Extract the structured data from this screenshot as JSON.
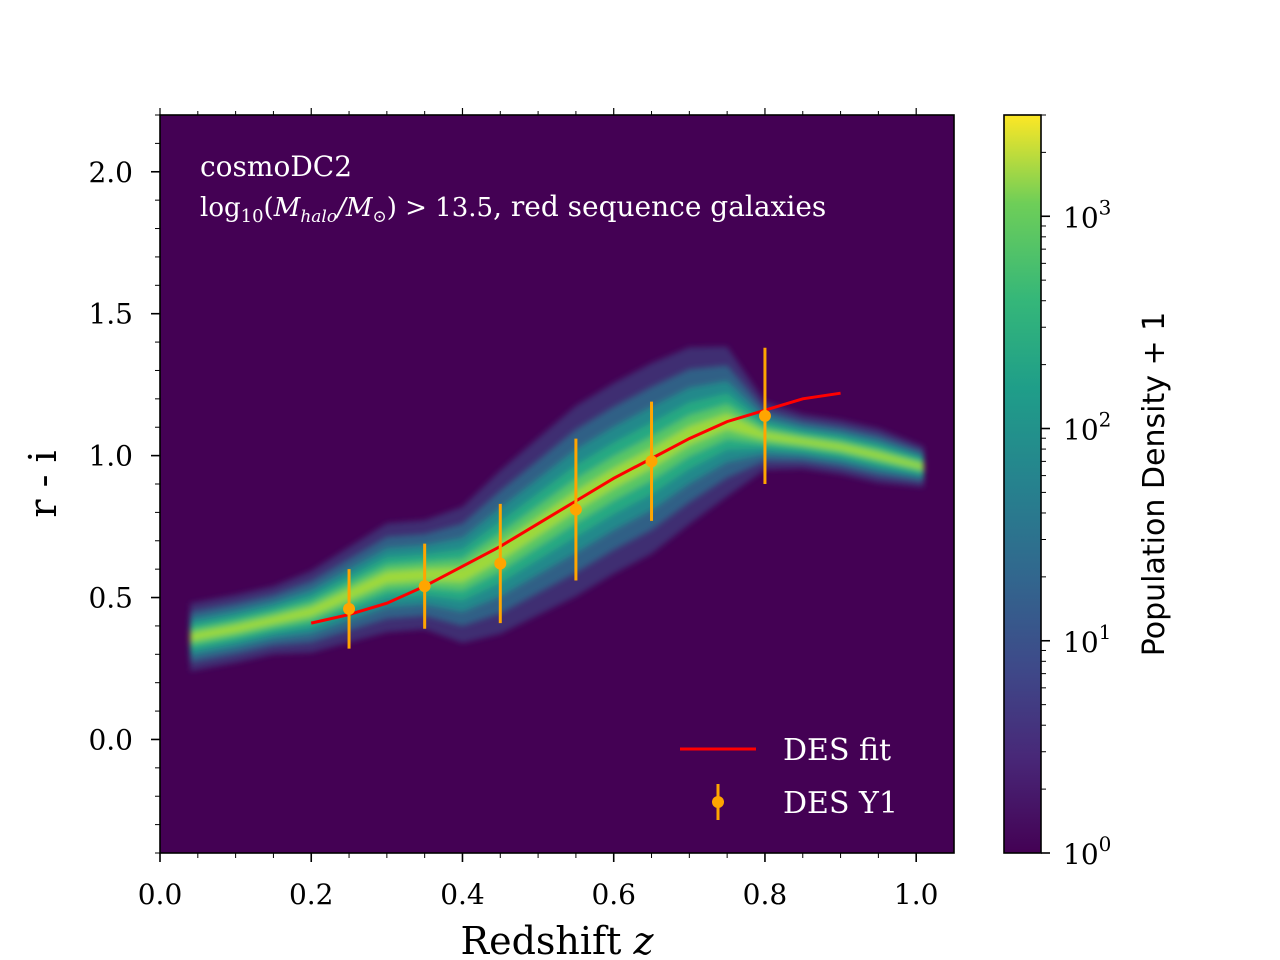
{
  "chart_data": {
    "type": "heatmap",
    "title": "",
    "xlabel_text": "Redshift ",
    "xlabel_var": "z",
    "ylabel": "r - i",
    "xlim": [
      0.0,
      1.05
    ],
    "ylim": [
      -0.4,
      2.2
    ],
    "xticks": [
      0.0,
      0.2,
      0.4,
      0.6,
      0.8,
      1.0
    ],
    "xtick_labels": [
      "0.0",
      "0.2",
      "0.4",
      "0.6",
      "0.8",
      "1.0"
    ],
    "yticks": [
      0.0,
      0.5,
      1.0,
      1.5,
      2.0
    ],
    "ytick_labels": [
      "0.0",
      "0.5",
      "1.0",
      "1.5",
      "2.0"
    ],
    "annotation": {
      "line1": "cosmoDC2",
      "line2_prefix": "log",
      "line2_sub": "10",
      "line2_open": "(",
      "line2_m1": "M",
      "line2_m1_sub": "halo",
      "line2_slash": "/",
      "line2_m2": "M",
      "line2_m2_sub": "⊙",
      "line2_close": ") > 13.5",
      "line2_suffix": ", red sequence galaxies"
    },
    "colorbar": {
      "label": "Population Density + 1",
      "scale": "log",
      "range": [
        1,
        3000
      ],
      "ticks": [
        {
          "value": 1,
          "base": "10",
          "exp": "0"
        },
        {
          "value": 10,
          "base": "10",
          "exp": "1"
        },
        {
          "value": 100,
          "base": "10",
          "exp": "2"
        },
        {
          "value": 1000,
          "base": "10",
          "exp": "3"
        }
      ],
      "colormap": "viridis"
    },
    "ridge": {
      "z": [
        0.04,
        0.1,
        0.15,
        0.2,
        0.25,
        0.3,
        0.35,
        0.4,
        0.45,
        0.5,
        0.55,
        0.6,
        0.65,
        0.7,
        0.75,
        0.8,
        0.85,
        0.9,
        0.95,
        1.01
      ],
      "mean": [
        0.36,
        0.39,
        0.42,
        0.45,
        0.51,
        0.57,
        0.58,
        0.58,
        0.66,
        0.75,
        0.84,
        0.92,
        0.99,
        1.07,
        1.12,
        1.07,
        1.05,
        1.03,
        1.0,
        0.96
      ],
      "width": [
        0.05,
        0.05,
        0.05,
        0.06,
        0.07,
        0.08,
        0.08,
        0.1,
        0.12,
        0.13,
        0.14,
        0.14,
        0.14,
        0.13,
        0.11,
        0.05,
        0.04,
        0.04,
        0.04,
        0.03
      ]
    },
    "series": [
      {
        "name": "DES fit",
        "kind": "line",
        "color": "#ff0000",
        "x": [
          0.2,
          0.25,
          0.3,
          0.35,
          0.4,
          0.45,
          0.5,
          0.55,
          0.6,
          0.65,
          0.7,
          0.75,
          0.8,
          0.85,
          0.9
        ],
        "y": [
          0.41,
          0.44,
          0.48,
          0.54,
          0.61,
          0.68,
          0.76,
          0.84,
          0.92,
          0.99,
          1.06,
          1.12,
          1.16,
          1.2,
          1.22
        ]
      },
      {
        "name": "DES Y1",
        "kind": "errorbar",
        "color": "#ffa500",
        "x": [
          0.25,
          0.35,
          0.45,
          0.55,
          0.65,
          0.8
        ],
        "y": [
          0.46,
          0.54,
          0.62,
          0.81,
          0.98,
          1.14
        ],
        "yerr": [
          0.14,
          0.15,
          0.21,
          0.25,
          0.21,
          0.24
        ]
      }
    ],
    "legend_position": "lower-right",
    "background_color": "#440154"
  }
}
